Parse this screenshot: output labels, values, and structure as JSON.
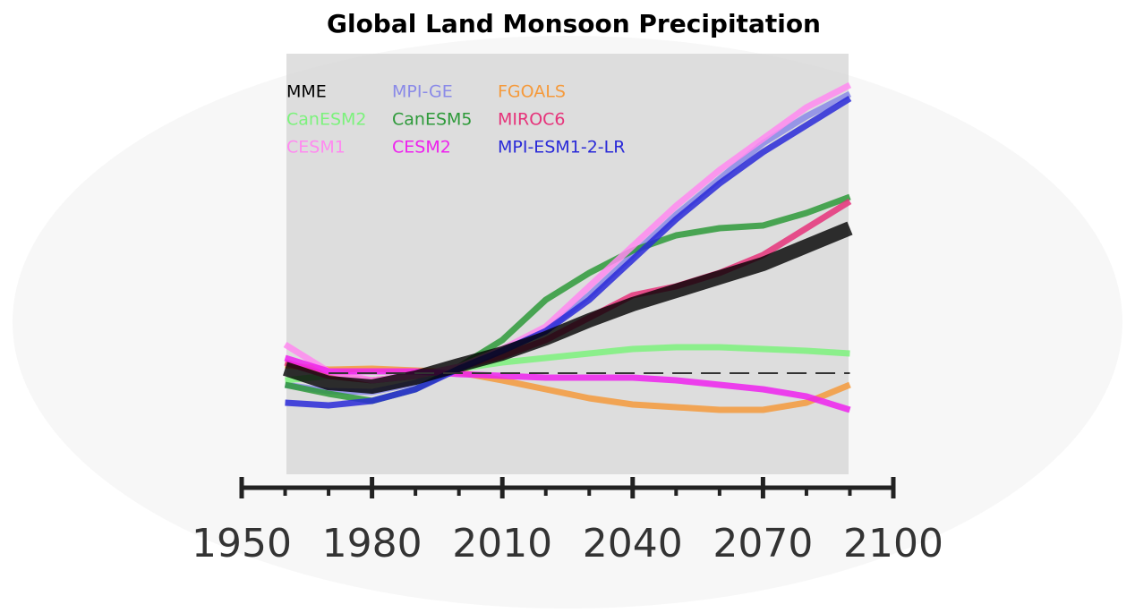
{
  "chart_data": {
    "type": "line",
    "title": "Global Land Monsoon Precipitation",
    "x": [
      1960,
      1970,
      1980,
      1990,
      2000,
      2010,
      2020,
      2030,
      2040,
      2050,
      2060,
      2070,
      2080,
      2090
    ],
    "xlim": [
      1950,
      2100
    ],
    "xticks": [
      1950,
      1980,
      2010,
      2040,
      2070,
      2100
    ],
    "xminorticks": [
      1960,
      1970,
      1990,
      2000,
      2020,
      2030,
      2050,
      2060,
      2080,
      2090
    ],
    "ylim": [
      -10,
      35
    ],
    "baseline": 0,
    "series": [
      {
        "name": "MME",
        "color": "#000000",
        "values": [
          0.5,
          -1.1,
          -1.5,
          -0.5,
          0.9,
          2.2,
          3.9,
          5.9,
          7.7,
          9.2,
          10.7,
          12.2,
          14.2,
          16.2
        ]
      },
      {
        "name": "MPI-GE",
        "color": "#8a8ae8",
        "values": [
          -1.3,
          -2,
          -2.1,
          -1.1,
          0.7,
          2.5,
          4.7,
          8.7,
          13.2,
          17.7,
          21.7,
          25.7,
          28.7,
          31.2
        ]
      },
      {
        "name": "FGOALS",
        "color": "#f59a3c",
        "values": [
          0.9,
          0.4,
          0.5,
          0.3,
          0.1,
          -0.8,
          -1.8,
          -2.8,
          -3.5,
          -3.8,
          -4.1,
          -4.1,
          -3.3,
          -1.3
        ]
      },
      {
        "name": "CanESM2",
        "color": "#7cf27c",
        "values": [
          -0.8,
          -0.3,
          -0.8,
          -0.3,
          0.5,
          1.2,
          1.7,
          2.2,
          2.7,
          2.9,
          2.9,
          2.7,
          2.5,
          2.2
        ]
      },
      {
        "name": "CanESM5",
        "color": "#2e9a3a",
        "values": [
          -1.3,
          -2.3,
          -3.1,
          -1.8,
          0.7,
          3.7,
          8.2,
          11.2,
          13.7,
          15.4,
          16.2,
          16.5,
          17.9,
          19.7
        ]
      },
      {
        "name": "MIROC6",
        "color": "#e6337a",
        "values": [
          1.2,
          -0.3,
          -0.8,
          -0.3,
          0.7,
          1.9,
          3.7,
          6.2,
          8.7,
          9.7,
          11.2,
          13.2,
          16.2,
          19.2
        ]
      },
      {
        "name": "CESM1",
        "color": "#ff8af0",
        "values": [
          3.2,
          0.2,
          -0.8,
          -0.3,
          0.7,
          2.7,
          5.2,
          9.7,
          14.2,
          18.7,
          22.7,
          26.2,
          29.7,
          32.2
        ]
      },
      {
        "name": "CESM2",
        "color": "#ee22ee",
        "values": [
          1.7,
          0.2,
          0.2,
          0.2,
          -0.1,
          -0.3,
          -0.5,
          -0.5,
          -0.5,
          -0.8,
          -1.3,
          -1.8,
          -2.6,
          -4.1
        ]
      },
      {
        "name": "MPI-ESM1-2-LR",
        "color": "#2a2ad8",
        "values": [
          -3.3,
          -3.6,
          -3.1,
          -1.8,
          0.5,
          2.5,
          4.7,
          8.2,
          12.7,
          17.2,
          21.2,
          24.7,
          27.7,
          30.7
        ]
      }
    ]
  }
}
